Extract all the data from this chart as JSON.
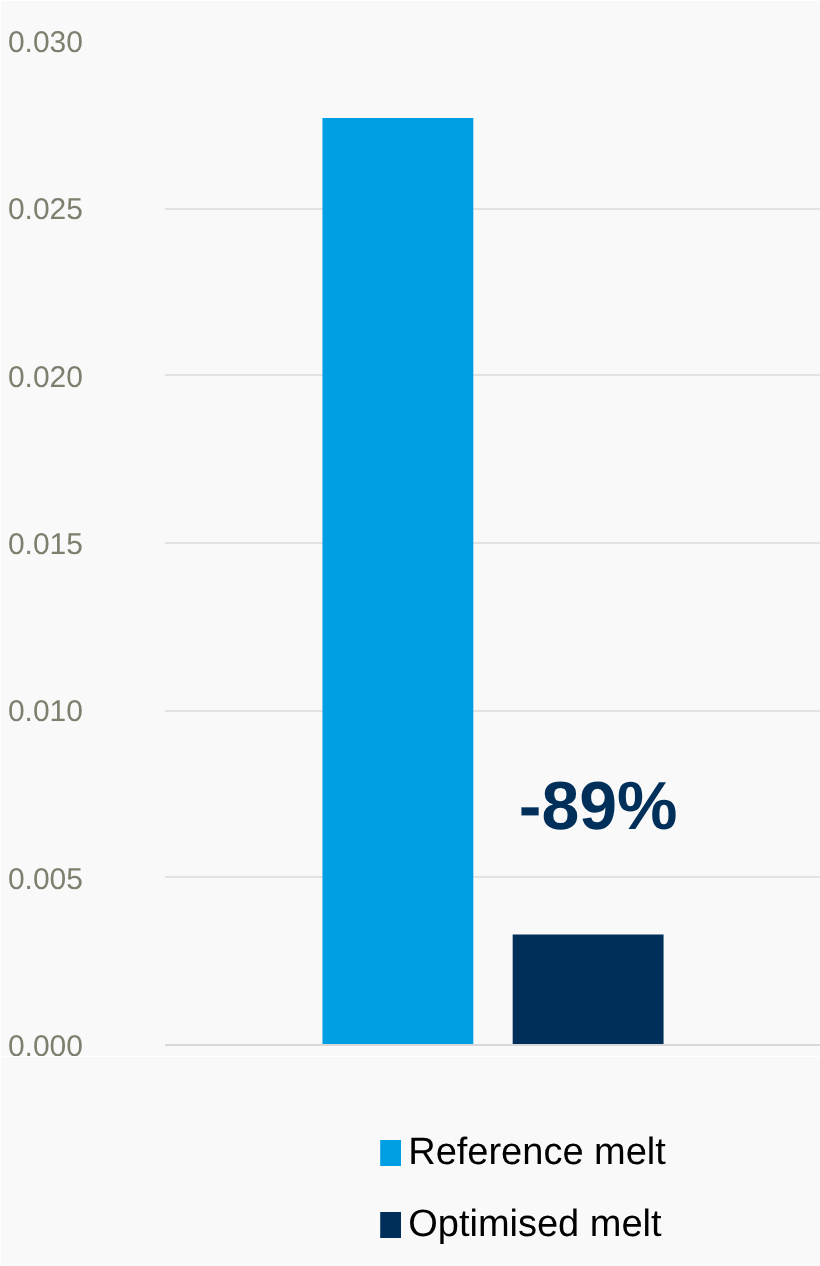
{
  "chart_data": {
    "type": "bar",
    "categories": [
      null
    ],
    "series": [
      {
        "name": "Reference melt",
        "color": "#009fe3",
        "values": [
          0.0277
        ]
      },
      {
        "name": "Optimised melt",
        "color": "#00305a",
        "values": [
          0.0033
        ]
      }
    ],
    "ylim": [
      0,
      0.03
    ],
    "yticks": [
      {
        "value": 0,
        "label": "0.000"
      },
      {
        "value": 0.005,
        "label": "0.005"
      },
      {
        "value": 0.01,
        "label": "0.010"
      },
      {
        "value": 0.015,
        "label": "0.015"
      },
      {
        "value": 0.02,
        "label": "0.020"
      },
      {
        "value": 0.025,
        "label": "0.025"
      },
      {
        "value": 0.03,
        "label": "0.030"
      }
    ],
    "grid": "y",
    "legend": "bottom",
    "annotations": [
      "-89%"
    ]
  }
}
